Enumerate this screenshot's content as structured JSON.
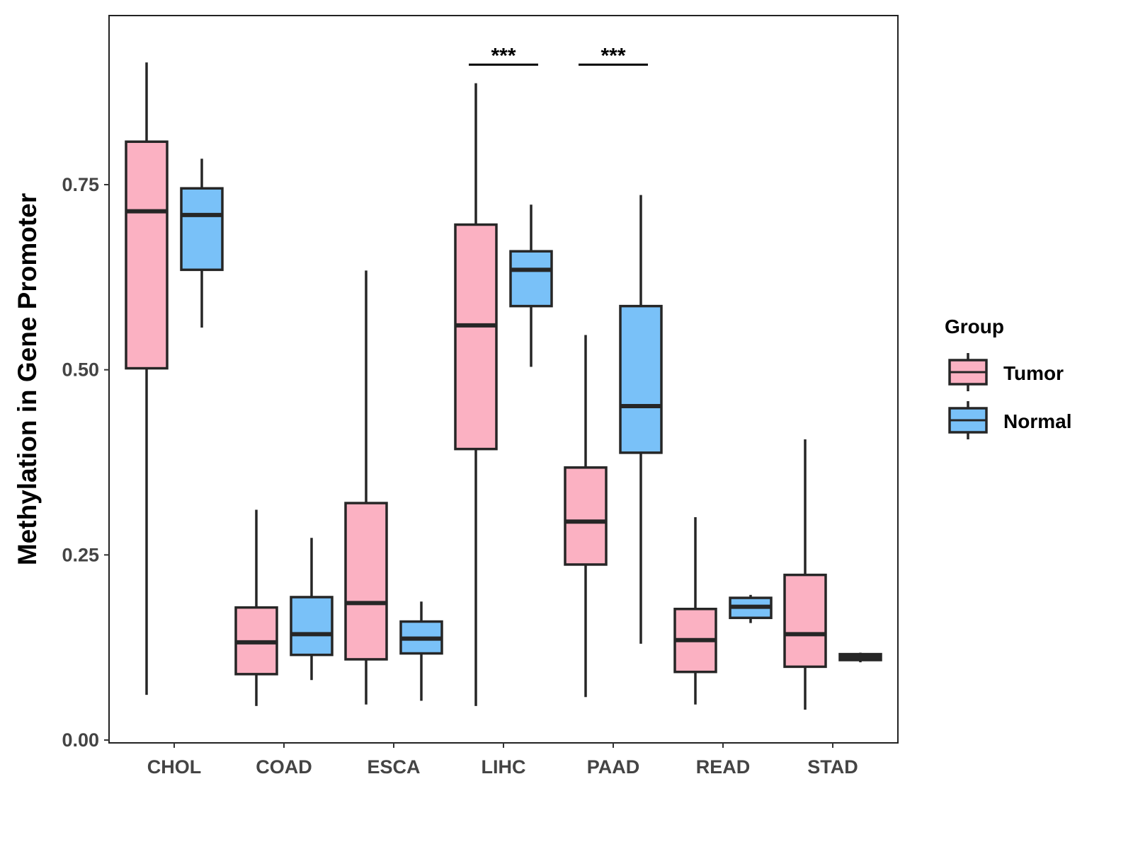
{
  "chart_data": {
    "type": "boxplot",
    "title": "",
    "xlabel": "",
    "ylabel": "Methylation in Gene Promoter",
    "ylim": [
      0,
      0.98
    ],
    "yticks": [
      0.0,
      0.25,
      0.5,
      0.75
    ],
    "ytick_labels": [
      "0.00",
      "0.25",
      "0.50",
      "0.75"
    ],
    "categories": [
      "CHOL",
      "COAD",
      "ESCA",
      "LIHC",
      "PAAD",
      "READ",
      "STAD"
    ],
    "grid": false,
    "legend": {
      "title": "Group",
      "position": "right",
      "entries": [
        "Tumor",
        "Normal"
      ]
    },
    "colors": {
      "Tumor": "#FBB1C2",
      "Normal": "#79C1F8",
      "stroke": "#262626"
    },
    "series": [
      {
        "name": "Tumor",
        "boxes": [
          {
            "min": 0.061,
            "q1": 0.502,
            "median": 0.714,
            "q3": 0.808,
            "max": 0.915
          },
          {
            "min": 0.046,
            "q1": 0.089,
            "median": 0.132,
            "q3": 0.179,
            "max": 0.311
          },
          {
            "min": 0.048,
            "q1": 0.109,
            "median": 0.185,
            "q3": 0.32,
            "max": 0.634
          },
          {
            "min": 0.046,
            "q1": 0.393,
            "median": 0.56,
            "q3": 0.696,
            "max": 0.887
          },
          {
            "min": 0.058,
            "q1": 0.237,
            "median": 0.295,
            "q3": 0.368,
            "max": 0.547
          },
          {
            "min": 0.048,
            "q1": 0.092,
            "median": 0.135,
            "q3": 0.177,
            "max": 0.301
          },
          {
            "min": 0.041,
            "q1": 0.099,
            "median": 0.143,
            "q3": 0.223,
            "max": 0.406
          }
        ]
      },
      {
        "name": "Normal",
        "boxes": [
          {
            "min": 0.557,
            "q1": 0.635,
            "median": 0.709,
            "q3": 0.745,
            "max": 0.785
          },
          {
            "min": 0.081,
            "q1": 0.115,
            "median": 0.143,
            "q3": 0.193,
            "max": 0.273
          },
          {
            "min": 0.053,
            "q1": 0.117,
            "median": 0.137,
            "q3": 0.16,
            "max": 0.187
          },
          {
            "min": 0.504,
            "q1": 0.586,
            "median": 0.635,
            "q3": 0.66,
            "max": 0.723
          },
          {
            "min": 0.13,
            "q1": 0.388,
            "median": 0.451,
            "q3": 0.586,
            "max": 0.736
          },
          {
            "min": 0.158,
            "q1": 0.165,
            "median": 0.18,
            "q3": 0.192,
            "max": 0.196
          },
          {
            "min": 0.105,
            "q1": 0.108,
            "median": 0.112,
            "q3": 0.116,
            "max": 0.118
          }
        ]
      }
    ],
    "annotations": [
      {
        "category": "LIHC",
        "label": "***",
        "y": 0.912
      },
      {
        "category": "PAAD",
        "label": "***",
        "y": 0.912
      }
    ]
  }
}
